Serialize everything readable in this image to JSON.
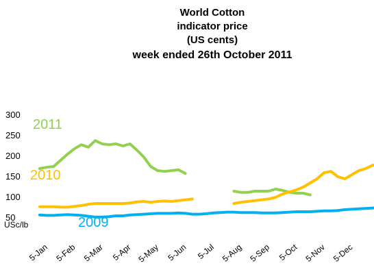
{
  "chart_data": {
    "type": "line",
    "title": [
      "World Cotton",
      "indicator price",
      "(US cents)",
      "week ended 26th October 2011"
    ],
    "ylabel": "USc/lb",
    "ylim": [
      0,
      300
    ],
    "yticks": [
      300,
      250,
      200,
      150,
      100,
      50
    ],
    "grid": false,
    "xaxis_months": [
      "5-Jan",
      "5-Feb",
      "5-Mar",
      "5-Apr",
      "5-May",
      "5-Jun",
      "5-Jul",
      "5-Aug",
      "5-Sep",
      "5-Oct",
      "5-Nov",
      "5-Dec"
    ],
    "series": [
      {
        "name": "2011",
        "color": "#92d050",
        "segments": [
          {
            "x": [
              0,
              0.25,
              0.5,
              0.75,
              1.0,
              1.25,
              1.5,
              1.75,
              2.0,
              2.25,
              2.5,
              2.75,
              3.0,
              3.25,
              3.5,
              3.75,
              4.0,
              4.25,
              4.5,
              4.75,
              5.0,
              5.25
            ],
            "y": [
              170,
              173,
              175,
              190,
              205,
              218,
              228,
              222,
              238,
              230,
              228,
              230,
              225,
              230,
              215,
              198,
              175,
              165,
              163,
              165,
              167,
              158
            ]
          },
          {
            "x": [
              7.0,
              7.25,
              7.5,
              7.75,
              8.0,
              8.25,
              8.5,
              8.75,
              9.0,
              9.25,
              9.5,
              9.75
            ],
            "y": [
              115,
              112,
              112,
              115,
              115,
              115,
              120,
              117,
              112,
              110,
              110,
              106
            ]
          }
        ]
      },
      {
        "name": "2010",
        "color": "#ffc000",
        "segments": [
          {
            "x": [
              0,
              0.25,
              0.5,
              0.75,
              1.0,
              1.25,
              1.5,
              1.75,
              2.0,
              2.25,
              2.5,
              2.75,
              3.0,
              3.25,
              3.5,
              3.75,
              4.0,
              4.25,
              4.5,
              4.75,
              5.0,
              5.25,
              5.5
            ],
            "y": [
              77,
              77,
              77,
              76,
              76,
              78,
              80,
              83,
              85,
              85,
              85,
              85,
              85,
              86,
              89,
              90,
              88,
              90,
              91,
              90,
              92,
              94,
              96
            ]
          },
          {
            "x": [
              7.0,
              7.25,
              7.5,
              7.75,
              8.0,
              8.25,
              8.5,
              8.75,
              9.0,
              9.25,
              9.5,
              9.75,
              10.0,
              10.25,
              10.5,
              10.75,
              11.0,
              11.25,
              11.5,
              11.75,
              12.0,
              12.25
            ],
            "y": [
              85,
              88,
              90,
              92,
              94,
              96,
              100,
              108,
              113,
              118,
              125,
              135,
              145,
              160,
              163,
              150,
              145,
              155,
              165,
              170,
              178,
              180
            ]
          }
        ]
      },
      {
        "name": "2009",
        "color": "#00b0f0",
        "segments": [
          {
            "x": [
              0,
              0.25,
              0.5,
              0.75,
              1.0,
              1.25,
              1.5,
              1.75,
              2.0,
              2.25,
              2.5,
              2.75,
              3.0,
              3.25,
              3.5,
              3.75,
              4.0,
              4.25,
              4.5,
              4.75,
              5.0,
              5.25,
              5.5,
              5.75,
              6.0,
              6.25,
              6.5,
              6.75,
              7.0,
              7.25,
              7.5,
              7.75,
              8.0,
              8.25,
              8.5,
              8.75,
              9.0,
              9.25,
              9.5,
              9.75,
              10.0,
              10.25,
              10.5,
              10.75,
              11.0,
              11.25,
              11.5,
              11.75,
              12.0,
              12.25
            ],
            "y": [
              57,
              56,
              56,
              57,
              58,
              57,
              56,
              54,
              52,
              52,
              53,
              55,
              55,
              57,
              58,
              59,
              60,
              61,
              61,
              61,
              62,
              61,
              59,
              59,
              60,
              62,
              63,
              64,
              64,
              63,
              63,
              63,
              62,
              62,
              62,
              63,
              64,
              65,
              65,
              65,
              66,
              67,
              67,
              68,
              70,
              71,
              72,
              73,
              74,
              75
            ]
          }
        ]
      }
    ]
  }
}
